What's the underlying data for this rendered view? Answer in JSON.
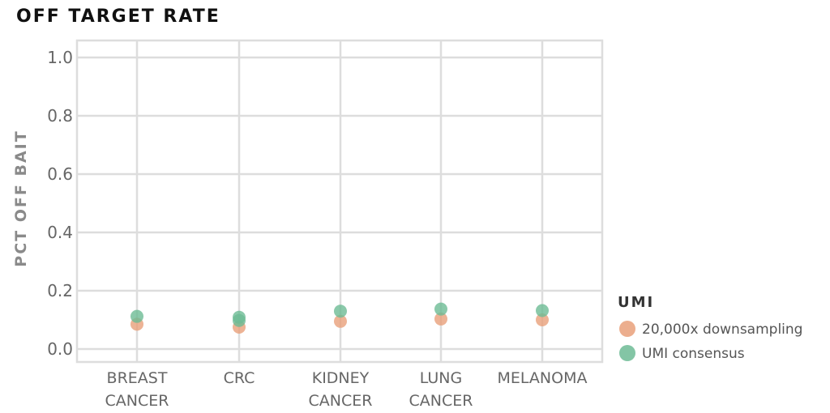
{
  "chart_data": {
    "type": "scatter",
    "title": "OFF TARGET RATE",
    "xlabel": "",
    "ylabel": "PCT OFF BAIT",
    "ylim": [
      0.0,
      1.0
    ],
    "yticks": [
      "0.0",
      "0.2",
      "0.4",
      "0.6",
      "0.8",
      "1.0"
    ],
    "categories": [
      [
        "BREAST",
        "CANCER"
      ],
      [
        "CRC"
      ],
      [
        "KIDNEY",
        "CANCER"
      ],
      [
        "LUNG",
        "CANCER"
      ],
      [
        "MELANOMA"
      ]
    ],
    "grid": true,
    "legend": {
      "title": "UMI",
      "placement": "right"
    },
    "series": [
      {
        "name": "20,000x downsampling",
        "color": "#e9a07a",
        "points": [
          {
            "category": 0,
            "y": 0.085
          },
          {
            "category": 1,
            "y": 0.075
          },
          {
            "category": 2,
            "y": 0.095
          },
          {
            "category": 3,
            "y": 0.103
          },
          {
            "category": 4,
            "y": 0.1
          }
        ]
      },
      {
        "name": "UMI consensus",
        "color": "#6dbb95",
        "points": [
          {
            "category": 0,
            "y": 0.112
          },
          {
            "category": 1,
            "y": 0.109
          },
          {
            "category": 1,
            "y": 0.098
          },
          {
            "category": 2,
            "y": 0.13
          },
          {
            "category": 3,
            "y": 0.137
          },
          {
            "category": 4,
            "y": 0.132
          }
        ]
      }
    ]
  }
}
